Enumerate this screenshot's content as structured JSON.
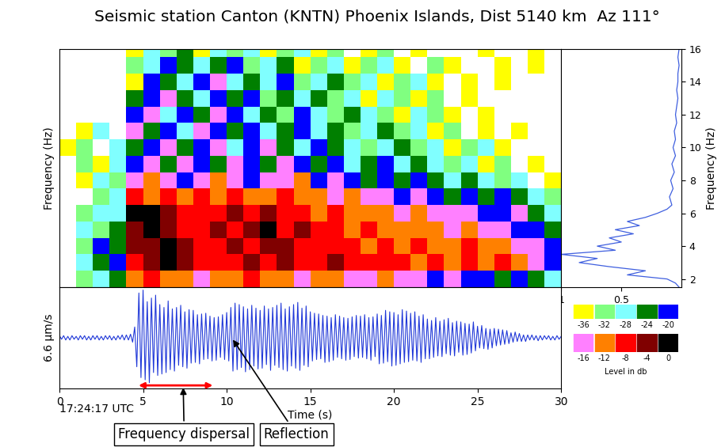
{
  "title": "Seismic station Canton (KNTN) Phoenix Islands, Dist 5140 km  Az 111°",
  "chart_data": [
    {
      "type": "heatmap",
      "ylabel": "Frequency (Hz)",
      "x": [
        0.5,
        1.5,
        2.5,
        3.5,
        4.5,
        5.5,
        6.5,
        7.5,
        8.5,
        9.5,
        10.5,
        11.5,
        12.5,
        13.5,
        14.5,
        15.5,
        16.5,
        17.5,
        18.5,
        19.5,
        20.5,
        21.5,
        22.5,
        23.5,
        24.5,
        25.5,
        26.5,
        27.5,
        28.5,
        29.5
      ],
      "y": [
        2,
        3,
        4,
        5,
        6,
        7,
        8,
        9,
        10,
        11,
        12,
        13,
        14,
        15,
        16
      ],
      "cells": [
        [
          null,
          -32,
          -28,
          -24,
          -12,
          -8,
          -12,
          -12,
          -16,
          -12,
          -12,
          -8,
          -12,
          -12,
          -16,
          -12,
          -12,
          -16,
          -16,
          -12,
          -16,
          -16,
          -20,
          -16,
          -20,
          -20,
          -24,
          -20,
          -24,
          -28
        ],
        [
          null,
          -28,
          -24,
          -20,
          -8,
          -4,
          0,
          -4,
          -8,
          -8,
          -8,
          -4,
          -8,
          -4,
          -8,
          -8,
          -4,
          -8,
          -8,
          -8,
          -8,
          -12,
          -8,
          -12,
          -8,
          -12,
          -8,
          -12,
          -16,
          -20
        ],
        [
          null,
          -32,
          -20,
          -24,
          -4,
          -4,
          0,
          -4,
          -8,
          -8,
          -4,
          -8,
          -4,
          -4,
          -8,
          -8,
          -8,
          -8,
          -12,
          -8,
          -12,
          -8,
          -12,
          -12,
          -8,
          -12,
          -12,
          -16,
          -16,
          -20
        ],
        [
          null,
          -28,
          -32,
          -24,
          -4,
          0,
          -4,
          -8,
          -8,
          -4,
          -8,
          -4,
          0,
          -8,
          -4,
          -8,
          -8,
          -12,
          -8,
          -12,
          -12,
          -12,
          -12,
          -16,
          -12,
          -16,
          -16,
          -20,
          -20,
          -24
        ],
        [
          null,
          -32,
          -28,
          -28,
          0,
          0,
          -4,
          -8,
          -8,
          -8,
          -4,
          -8,
          -4,
          -8,
          -8,
          -12,
          -8,
          -12,
          -12,
          -12,
          -16,
          -12,
          -16,
          -16,
          -16,
          -20,
          -20,
          -16,
          -24,
          -28
        ],
        [
          null,
          null,
          -32,
          -28,
          -8,
          -12,
          -8,
          -12,
          -8,
          -12,
          -8,
          -12,
          -12,
          -8,
          -12,
          -12,
          -16,
          -12,
          -16,
          -16,
          -20,
          -16,
          -20,
          -24,
          -20,
          -24,
          -20,
          -24,
          -28,
          -32
        ],
        [
          null,
          -36,
          -28,
          -32,
          -16,
          -12,
          -16,
          -20,
          -16,
          -12,
          -16,
          -20,
          -16,
          -16,
          -12,
          -20,
          -16,
          -20,
          -24,
          -20,
          -24,
          -20,
          -24,
          -28,
          -24,
          -28,
          -32,
          -28,
          null,
          -36
        ],
        [
          null,
          -32,
          -36,
          -28,
          -20,
          -16,
          -24,
          -16,
          -20,
          -24,
          -16,
          -20,
          -24,
          -16,
          -20,
          -24,
          -20,
          -28,
          -24,
          -20,
          -28,
          -24,
          -28,
          -32,
          -28,
          -36,
          -32,
          null,
          -36,
          null
        ],
        [
          -36,
          -32,
          null,
          -28,
          -24,
          -20,
          -16,
          -24,
          -20,
          -16,
          -28,
          -20,
          -16,
          -24,
          -28,
          -20,
          -24,
          -28,
          -32,
          -28,
          -24,
          -32,
          -28,
          -36,
          -32,
          -28,
          -36,
          null,
          null,
          null
        ],
        [
          null,
          -36,
          -28,
          null,
          -16,
          -24,
          -20,
          -28,
          -16,
          -20,
          -24,
          -20,
          -28,
          -24,
          -20,
          -28,
          -24,
          -32,
          -28,
          -24,
          -32,
          -28,
          -36,
          -32,
          null,
          -36,
          null,
          -36,
          null,
          null
        ],
        [
          null,
          null,
          null,
          null,
          -20,
          -16,
          -28,
          -20,
          -24,
          -16,
          -20,
          -28,
          -24,
          -32,
          -20,
          -28,
          -32,
          -24,
          -28,
          -32,
          -36,
          -28,
          -32,
          -36,
          null,
          -36,
          null,
          null,
          null,
          null
        ],
        [
          null,
          null,
          null,
          null,
          -24,
          -20,
          -16,
          -24,
          -28,
          -20,
          -24,
          -20,
          -32,
          -24,
          -28,
          -24,
          -32,
          -28,
          -36,
          -28,
          -32,
          -36,
          -32,
          null,
          -36,
          null,
          null,
          null,
          null,
          null
        ],
        [
          null,
          null,
          null,
          null,
          -36,
          -20,
          -24,
          -28,
          -20,
          -16,
          -28,
          -24,
          -28,
          -20,
          -32,
          -28,
          -24,
          -32,
          -28,
          -36,
          -32,
          -28,
          -36,
          null,
          -36,
          null,
          -36,
          null,
          null,
          null
        ],
        [
          null,
          null,
          null,
          null,
          -32,
          -28,
          -20,
          -24,
          -28,
          -24,
          -20,
          -32,
          -28,
          -24,
          -36,
          -32,
          -28,
          -36,
          -32,
          -28,
          -36,
          null,
          -32,
          -36,
          null,
          null,
          -36,
          null,
          -36,
          null
        ],
        [
          null,
          null,
          null,
          null,
          -36,
          -28,
          -32,
          -24,
          -36,
          -28,
          -32,
          -28,
          -36,
          -32,
          -28,
          -36,
          -32,
          null,
          -36,
          -32,
          null,
          -36,
          null,
          null,
          null,
          -36,
          null,
          null,
          -36,
          null
        ]
      ],
      "xlim": [
        0,
        30
      ],
      "ylim": [
        1.5,
        16
      ],
      "tick_labels": false,
      "colorbar": {
        "label": "Level in db",
        "rows": [
          {
            "ticks": [
              -36,
              -32,
              -28,
              -24,
              -20
            ],
            "colors": [
              "#ffff00",
              "#80ff80",
              "#80ffff",
              "#007f00",
              "#0000ff"
            ]
          },
          {
            "ticks": [
              -16,
              -12,
              -8,
              -4,
              0
            ],
            "colors": [
              "#ff80ff",
              "#ff8000",
              "#ff0000",
              "#800000",
              "#000000"
            ]
          }
        ]
      }
    },
    {
      "type": "line",
      "ylabel": "Frequency (Hz)",
      "x": [
        0.02,
        0.05,
        0.12,
        0.45,
        0.3,
        0.6,
        0.85,
        0.7,
        1.0,
        0.55,
        0.7,
        0.5,
        0.6,
        0.4,
        0.55,
        0.35,
        0.45,
        0.3,
        0.2,
        0.12,
        0.08,
        0.1,
        0.07,
        0.09,
        0.06,
        0.08,
        0.05,
        0.07,
        0.05,
        0.06,
        0.04,
        0.05,
        0.04,
        0.03,
        0.04,
        0.03,
        0.03,
        0.02,
        0.03,
        0.02
      ],
      "y": [
        1.5,
        1.75,
        2.0,
        2.25,
        2.5,
        2.75,
        3.0,
        3.25,
        3.5,
        3.75,
        4.0,
        4.25,
        4.5,
        4.75,
        5.0,
        5.25,
        5.5,
        5.75,
        6.0,
        6.25,
        6.5,
        7.0,
        7.5,
        8.0,
        8.5,
        9.0,
        9.5,
        10.0,
        10.5,
        11.0,
        11.5,
        12.0,
        12.5,
        13.0,
        13.5,
        14.0,
        14.5,
        15.0,
        15.5,
        16.0
      ],
      "color": "#3f5fdf",
      "xlim": [
        1,
        0
      ],
      "xticks": [
        0.5,
        1
      ],
      "ylim": [
        1.5,
        16
      ],
      "yticks": [
        2,
        4,
        6,
        8,
        10,
        12,
        14,
        16
      ]
    },
    {
      "type": "line",
      "xlabel": "Time (s)",
      "ylabel": "6.6 µm/s",
      "start_time": "17:24:17 UTC",
      "x": [
        0,
        0.125,
        0.25,
        0.375,
        0.5,
        0.625,
        0.75,
        0.875,
        1,
        1.125,
        1.25,
        1.375,
        1.5,
        1.625,
        1.75,
        1.875,
        2,
        2.125,
        2.25,
        2.375,
        2.5,
        2.625,
        2.75,
        2.875,
        3,
        3.125,
        3.25,
        3.375,
        3.5,
        3.625,
        3.75,
        3.875,
        4,
        4.125,
        4.25,
        4.375,
        4.5,
        4.625,
        4.75,
        4.875,
        5,
        5.125,
        5.25,
        5.375,
        5.5,
        5.625,
        5.75,
        5.875,
        6,
        6.125,
        6.25,
        6.375,
        6.5,
        6.625,
        6.75,
        6.875,
        7,
        7.125,
        7.25,
        7.375,
        7.5,
        7.625,
        7.75,
        7.875,
        8,
        8.125,
        8.25,
        8.375,
        8.5,
        8.625,
        8.75,
        8.875,
        9,
        9.125,
        9.25,
        9.375,
        9.5,
        9.625,
        9.75,
        9.875,
        10,
        10.125,
        10.25,
        10.375,
        10.5,
        10.625,
        10.75,
        10.875,
        11,
        11.125,
        11.25,
        11.375,
        11.5,
        11.625,
        11.75,
        11.875,
        12,
        12.125,
        12.25,
        12.375,
        12.5,
        12.625,
        12.75,
        12.875,
        13,
        13.125,
        13.25,
        13.375,
        13.5,
        13.625,
        13.75,
        13.875,
        14,
        14.125,
        14.25,
        14.375,
        14.5,
        14.625,
        14.75,
        14.875,
        15,
        15.125,
        15.25,
        15.375,
        15.5,
        15.625,
        15.75,
        15.875,
        16,
        16.125,
        16.25,
        16.375,
        16.5,
        16.625,
        16.75,
        16.875,
        17,
        17.125,
        17.25,
        17.375,
        17.5,
        17.625,
        17.75,
        17.875,
        18,
        18.125,
        18.25,
        18.375,
        18.5,
        18.625,
        18.75,
        18.875,
        19,
        19.125,
        19.25,
        19.375,
        19.5,
        19.625,
        19.75,
        19.875,
        20,
        20.125,
        20.25,
        20.375,
        20.5,
        20.625,
        20.75,
        20.875,
        21,
        21.125,
        21.25,
        21.375,
        21.5,
        21.625,
        21.75,
        21.875,
        22,
        22.125,
        22.25,
        22.375,
        22.5,
        22.625,
        22.75,
        22.875,
        23,
        23.125,
        23.25,
        23.375,
        23.5,
        23.625,
        23.75,
        23.875,
        24,
        24.125,
        24.25,
        24.375,
        24.5,
        24.625,
        24.75,
        24.875,
        25,
        25.125,
        25.25,
        25.375,
        25.5,
        25.625,
        25.75,
        25.875,
        26,
        26.125,
        26.25,
        26.375,
        26.5,
        26.625,
        26.75,
        26.875,
        27,
        27.125,
        27.25,
        27.375,
        27.5,
        27.625,
        27.75,
        27.875,
        28,
        28.125,
        28.25,
        28.375,
        28.5,
        28.625,
        28.75,
        28.875,
        29,
        29.125,
        29.25,
        29.375,
        29.5,
        29.625,
        29.75,
        29.875,
        30
      ],
      "values": [
        0.3,
        -0.2,
        0.3,
        -0.3,
        0.2,
        -0.3,
        0.3,
        -0.2,
        0.2,
        -0.3,
        0.3,
        -0.2,
        0.3,
        -0.3,
        0.2,
        -0.3,
        0.3,
        -0.2,
        0.3,
        -0.3,
        0.2,
        -0.3,
        0.3,
        -0.2,
        0.3,
        -0.3,
        0.2,
        -0.3,
        0.3,
        -0.2,
        0.4,
        -0.3,
        0.4,
        -0.3,
        0.5,
        -0.6,
        1.5,
        -4.0,
        6.2,
        -5.5,
        6.6,
        -5.8,
        5.0,
        -6.2,
        5.5,
        -4.8,
        5.9,
        -5.2,
        4.6,
        -5.0,
        4.2,
        -4.8,
        5.1,
        -4.4,
        4.0,
        -4.6,
        4.2,
        -3.8,
        4.5,
        -4.0,
        3.6,
        -4.2,
        3.9,
        -3.5,
        3.8,
        -3.4,
        3.2,
        -3.6,
        3.3,
        -3.0,
        3.4,
        -2.9,
        3.0,
        -3.2,
        2.8,
        -3.1,
        2.9,
        -2.7,
        3.2,
        -3.0,
        3.5,
        -3.2,
        4.2,
        -4.6,
        4.8,
        -4.4,
        4.6,
        -4.1,
        4.3,
        -4.7,
        4.0,
        -4.4,
        4.5,
        -3.9,
        4.1,
        -4.3,
        3.8,
        -4.2,
        4.4,
        -3.7,
        4.0,
        -4.5,
        4.2,
        -3.8,
        4.5,
        -4.1,
        4.8,
        -4.4,
        4.0,
        -4.6,
        4.3,
        -3.9,
        4.6,
        -4.2,
        4.9,
        -4.5,
        4.1,
        -3.8,
        4.4,
        -4.0,
        3.6,
        -3.2,
        3.4,
        -3.0,
        3.3,
        -2.9,
        3.1,
        -3.4,
        3.0,
        -3.3,
        2.8,
        -3.1,
        3.2,
        -2.7,
        3.0,
        -2.9,
        2.8,
        -3.1,
        2.7,
        -3.0,
        2.9,
        -2.6,
        3.1,
        -2.8,
        3.0,
        -2.7,
        3.2,
        -2.9,
        2.8,
        -3.1,
        2.9,
        -2.6,
        3.3,
        -3.6,
        3.1,
        -3.5,
        3.8,
        -3.3,
        3.6,
        -3.9,
        3.5,
        -3.8,
        3.2,
        -3.6,
        3.9,
        -3.4,
        3.7,
        -3.3,
        3.4,
        -3.1,
        3.6,
        -3.2,
        3.0,
        -3.4,
        3.2,
        -2.9,
        2.6,
        -2.9,
        2.4,
        -2.7,
        2.8,
        -2.5,
        2.3,
        -2.6,
        2.5,
        -2.2,
        2.7,
        -2.4,
        2.1,
        -2.5,
        2.3,
        -2.0,
        2.2,
        -2.4,
        2.0,
        -2.3,
        1.9,
        -2.1,
        2.2,
        -1.8,
        1.6,
        -1.4,
        1.7,
        -1.5,
        1.3,
        -1.6,
        1.2,
        -1.4,
        1.3,
        -1.1,
        1.2,
        -1.0,
        1.1,
        -0.9,
        1.0,
        -0.8,
        0.7,
        -0.6,
        0.8,
        -0.5,
        0.6,
        -0.5,
        0.4,
        -0.5,
        0.4,
        -0.3,
        0.4,
        -0.3,
        0.3,
        -0.4,
        0.3,
        -0.3,
        0.3,
        -0.2,
        0.3,
        -0.3,
        0.2,
        -0.3,
        0.3,
        -0.2,
        0.2
      ],
      "color": "#2038d8",
      "xlim": [
        0,
        30
      ],
      "xticks": [
        0,
        5,
        10,
        15,
        20,
        25,
        30
      ],
      "ylim": [
        -7,
        7
      ],
      "tick_labels": "x",
      "annotations": [
        {
          "text": "Frequency dispersal",
          "x": 7.4,
          "span": [
            4.6,
            9.3
          ]
        },
        {
          "text": "Reflection",
          "x": 10.3
        }
      ]
    }
  ]
}
